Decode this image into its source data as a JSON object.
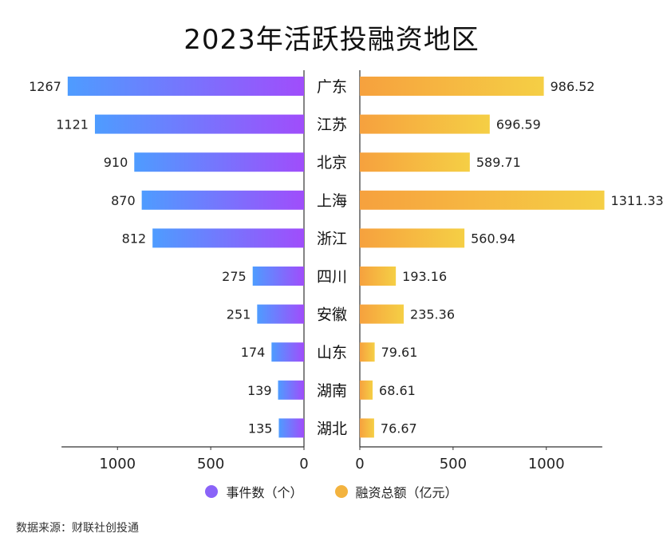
{
  "chart_data": {
    "type": "bar",
    "title": "2023年活跃投融资地区",
    "categories": [
      "广东",
      "江苏",
      "北京",
      "上海",
      "浙江",
      "四川",
      "安徽",
      "山东",
      "湖南",
      "湖北"
    ],
    "series": [
      {
        "name": "事件数（个）",
        "side": "left",
        "values": [
          1267,
          1121,
          910,
          870,
          812,
          275,
          251,
          174,
          139,
          135
        ],
        "value_labels": [
          "1267",
          "1121",
          "910",
          "870",
          "812",
          "275",
          "251",
          "174",
          "139",
          "135"
        ],
        "xlim": [
          0,
          1300
        ],
        "ticks": [
          1000,
          500,
          0
        ],
        "tick_labels": [
          "1000",
          "500",
          "0"
        ],
        "gradient": [
          "#4e9cff",
          "#a04dfb"
        ]
      },
      {
        "name": "融资总额（亿元）",
        "side": "right",
        "values": [
          986.52,
          696.59,
          589.71,
          1311.33,
          560.94,
          193.16,
          235.36,
          79.61,
          68.61,
          76.67
        ],
        "value_labels": [
          "986.52",
          "696.59",
          "589.71",
          "1311.33",
          "560.94",
          "193.16",
          "235.36",
          "79.61",
          "68.61",
          "76.67"
        ],
        "xlim": [
          0,
          1300
        ],
        "ticks": [
          0,
          500,
          1000
        ],
        "tick_labels": [
          "0",
          "500",
          "1000"
        ],
        "gradient": [
          "#f6a13e",
          "#f5cf45"
        ]
      }
    ],
    "legend_position": "bottom"
  },
  "legend": {
    "left_label": "事件数（个）",
    "left_color": "#8a63f8",
    "right_label": "融资总额（亿元）",
    "right_color": "#f3b33f"
  },
  "source_text": "数据来源：财联社创投通"
}
